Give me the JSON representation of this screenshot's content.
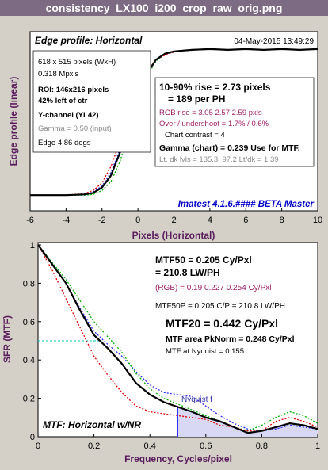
{
  "window": {
    "title": "consistency_LX100_i200_crop_raw_orig.png"
  },
  "colors": {
    "title_bar": "#7d6b83",
    "title_text": "#ffffff",
    "axis_label": "#5a1c5c",
    "plot_bg": "#ffffff",
    "panel_bg": "#d4d0c8",
    "black": "#000000",
    "red": "#e00000",
    "green": "#00b000",
    "blue": "#3030ff",
    "purple": "#a0206a",
    "cyan": "#00c8c8",
    "gray": "#8a8a8a",
    "watermark": "#0000c8"
  },
  "top": {
    "panel_title": "Edge profile: Horizontal",
    "timestamp": "04-May-2015 13:49:29",
    "info": {
      "dims": "618 x 515 pixels (WxH)",
      "mpxls": "0.318 Mpxls",
      "roi": "ROI:  146x216 pixels",
      "pos": "42% left of ctr",
      "channel": "Y-channel  (YL42)",
      "gamma_input": "Gamma = 0.50 (input)",
      "edge": "Edge 4.86 degs"
    },
    "stats": {
      "rise": "10-90% rise = 2.73 pixels",
      "rise_ph": "= 189 per PH",
      "rgb_rise": "RGB rise = 3.05  2.57  2.59 pxls",
      "overshoot": "Over / undershoot = 1.7% / 0.6%",
      "contrast": "Chart contrast = 4",
      "gamma_chart": "Gamma (chart) = 0.239  Use for MTF.",
      "levels": "Lt, dk lvls = 135.3, 97.2   Lt/dk = 1.39"
    },
    "watermark": "Imatest 4.1.6.#### BETA Master",
    "ylabel": "Edge profile (linear)",
    "xlabel": "Pixels (Horizontal)",
    "x_ticks": [
      "-6",
      "-4",
      "-2",
      "0",
      "2",
      "4",
      "6",
      "8",
      "10"
    ]
  },
  "bottom": {
    "stats": {
      "mtf50": "MTF50 = 0.205 Cy/Pxl",
      "mtf50_lw": "= 210.8 LW/PH",
      "rgb": "(RGB) = 0.19  0.227  0.254 Cy/Pxl",
      "mtf50p": "MTF50P = 0.205 C/P = 210.8 LW/PH",
      "mtf20": "MTF20 = 0.442 Cy/Pxl",
      "area": "MTF area PkNorm = 0.248 Cy/Pxl",
      "nyq": "MTF at Nyquist = 0.155"
    },
    "nyquist_label": "Nyquist f",
    "caption": "MTF: Horizontal w/NR",
    "ylabel": "SFR (MTF)",
    "xlabel": "Frequency, Cycles/pixel",
    "x_ticks": [
      "0",
      "0.2",
      "0.4",
      "0.6",
      "0.8",
      "1"
    ],
    "y_ticks": [
      "0",
      "0.2",
      "0.4",
      "0.6",
      "0.8",
      "1"
    ]
  },
  "chart_data": [
    {
      "type": "line",
      "xlim": [
        -6,
        10
      ],
      "ylim": [
        0,
        1
      ],
      "grid": false,
      "x": [
        -6,
        -5,
        -4,
        -3,
        -2.5,
        -2,
        -1.5,
        -1,
        -0.5,
        0,
        0.5,
        1,
        1.5,
        2,
        2.5,
        3,
        4,
        5,
        6,
        7,
        8,
        9,
        10
      ],
      "series": [
        {
          "color": "#000000",
          "values": [
            0.03,
            0.03,
            0.03,
            0.035,
            0.045,
            0.08,
            0.16,
            0.31,
            0.51,
            0.69,
            0.83,
            0.92,
            0.96,
            0.975,
            0.98,
            0.985,
            0.99,
            0.985,
            0.99,
            0.985,
            0.99,
            0.985,
            0.99
          ]
        },
        {
          "color": "#e00000",
          "values": [
            0.03,
            0.03,
            0.03,
            0.04,
            0.06,
            0.11,
            0.22,
            0.38,
            0.56,
            0.72,
            0.84,
            0.92,
            0.95,
            0.97,
            0.98,
            0.985,
            0.99,
            0.985,
            0.99,
            0.985,
            0.99,
            0.985,
            0.99
          ]
        },
        {
          "color": "#00b000",
          "values": [
            0.03,
            0.03,
            0.03,
            0.03,
            0.035,
            0.06,
            0.12,
            0.25,
            0.45,
            0.65,
            0.81,
            0.91,
            0.96,
            0.975,
            0.98,
            0.985,
            0.99,
            0.985,
            0.99,
            0.985,
            0.99,
            0.985,
            0.99
          ]
        },
        {
          "color": "#3030ff",
          "values": [
            0.03,
            0.03,
            0.03,
            0.035,
            0.05,
            0.09,
            0.18,
            0.33,
            0.53,
            0.7,
            0.83,
            0.92,
            0.96,
            0.975,
            0.98,
            0.985,
            0.99,
            0.985,
            0.99,
            0.985,
            0.99,
            0.985,
            0.99
          ]
        }
      ]
    },
    {
      "type": "line",
      "xlim": [
        0,
        1
      ],
      "ylim": [
        0,
        1
      ],
      "grid": false,
      "nyquist": 0.5,
      "mtf20_line": 0.2,
      "mtf50_line": 0.5,
      "x": [
        0,
        0.05,
        0.1,
        0.15,
        0.2,
        0.25,
        0.3,
        0.35,
        0.4,
        0.45,
        0.5,
        0.55,
        0.6,
        0.65,
        0.7,
        0.75,
        0.8,
        0.85,
        0.9,
        0.95,
        1.0
      ],
      "series": [
        {
          "color": "#000000",
          "values": [
            1.0,
            0.9,
            0.8,
            0.66,
            0.53,
            0.46,
            0.38,
            0.28,
            0.22,
            0.18,
            0.155,
            0.13,
            0.1,
            0.08,
            0.05,
            0.02,
            0.03,
            0.05,
            0.07,
            0.06,
            0.04
          ]
        },
        {
          "color": "#e00000",
          "values": [
            1.0,
            0.87,
            0.72,
            0.57,
            0.42,
            0.32,
            0.23,
            0.16,
            0.13,
            0.12,
            0.11,
            0.1,
            0.09,
            0.06,
            0.05,
            0.03,
            0.03,
            0.08,
            0.1,
            0.08,
            0.05
          ]
        },
        {
          "color": "#00b000",
          "values": [
            1.0,
            0.91,
            0.82,
            0.71,
            0.6,
            0.52,
            0.44,
            0.33,
            0.25,
            0.2,
            0.17,
            0.14,
            0.11,
            0.08,
            0.05,
            0.03,
            0.06,
            0.1,
            0.13,
            0.11,
            0.07
          ]
        },
        {
          "color": "#3030ff",
          "values": [
            1.0,
            0.9,
            0.8,
            0.67,
            0.55,
            0.48,
            0.42,
            0.34,
            0.27,
            0.23,
            0.22,
            0.21,
            0.16,
            0.11,
            0.07,
            0.04,
            0.03,
            0.04,
            0.06,
            0.05,
            0.04
          ]
        }
      ]
    }
  ]
}
